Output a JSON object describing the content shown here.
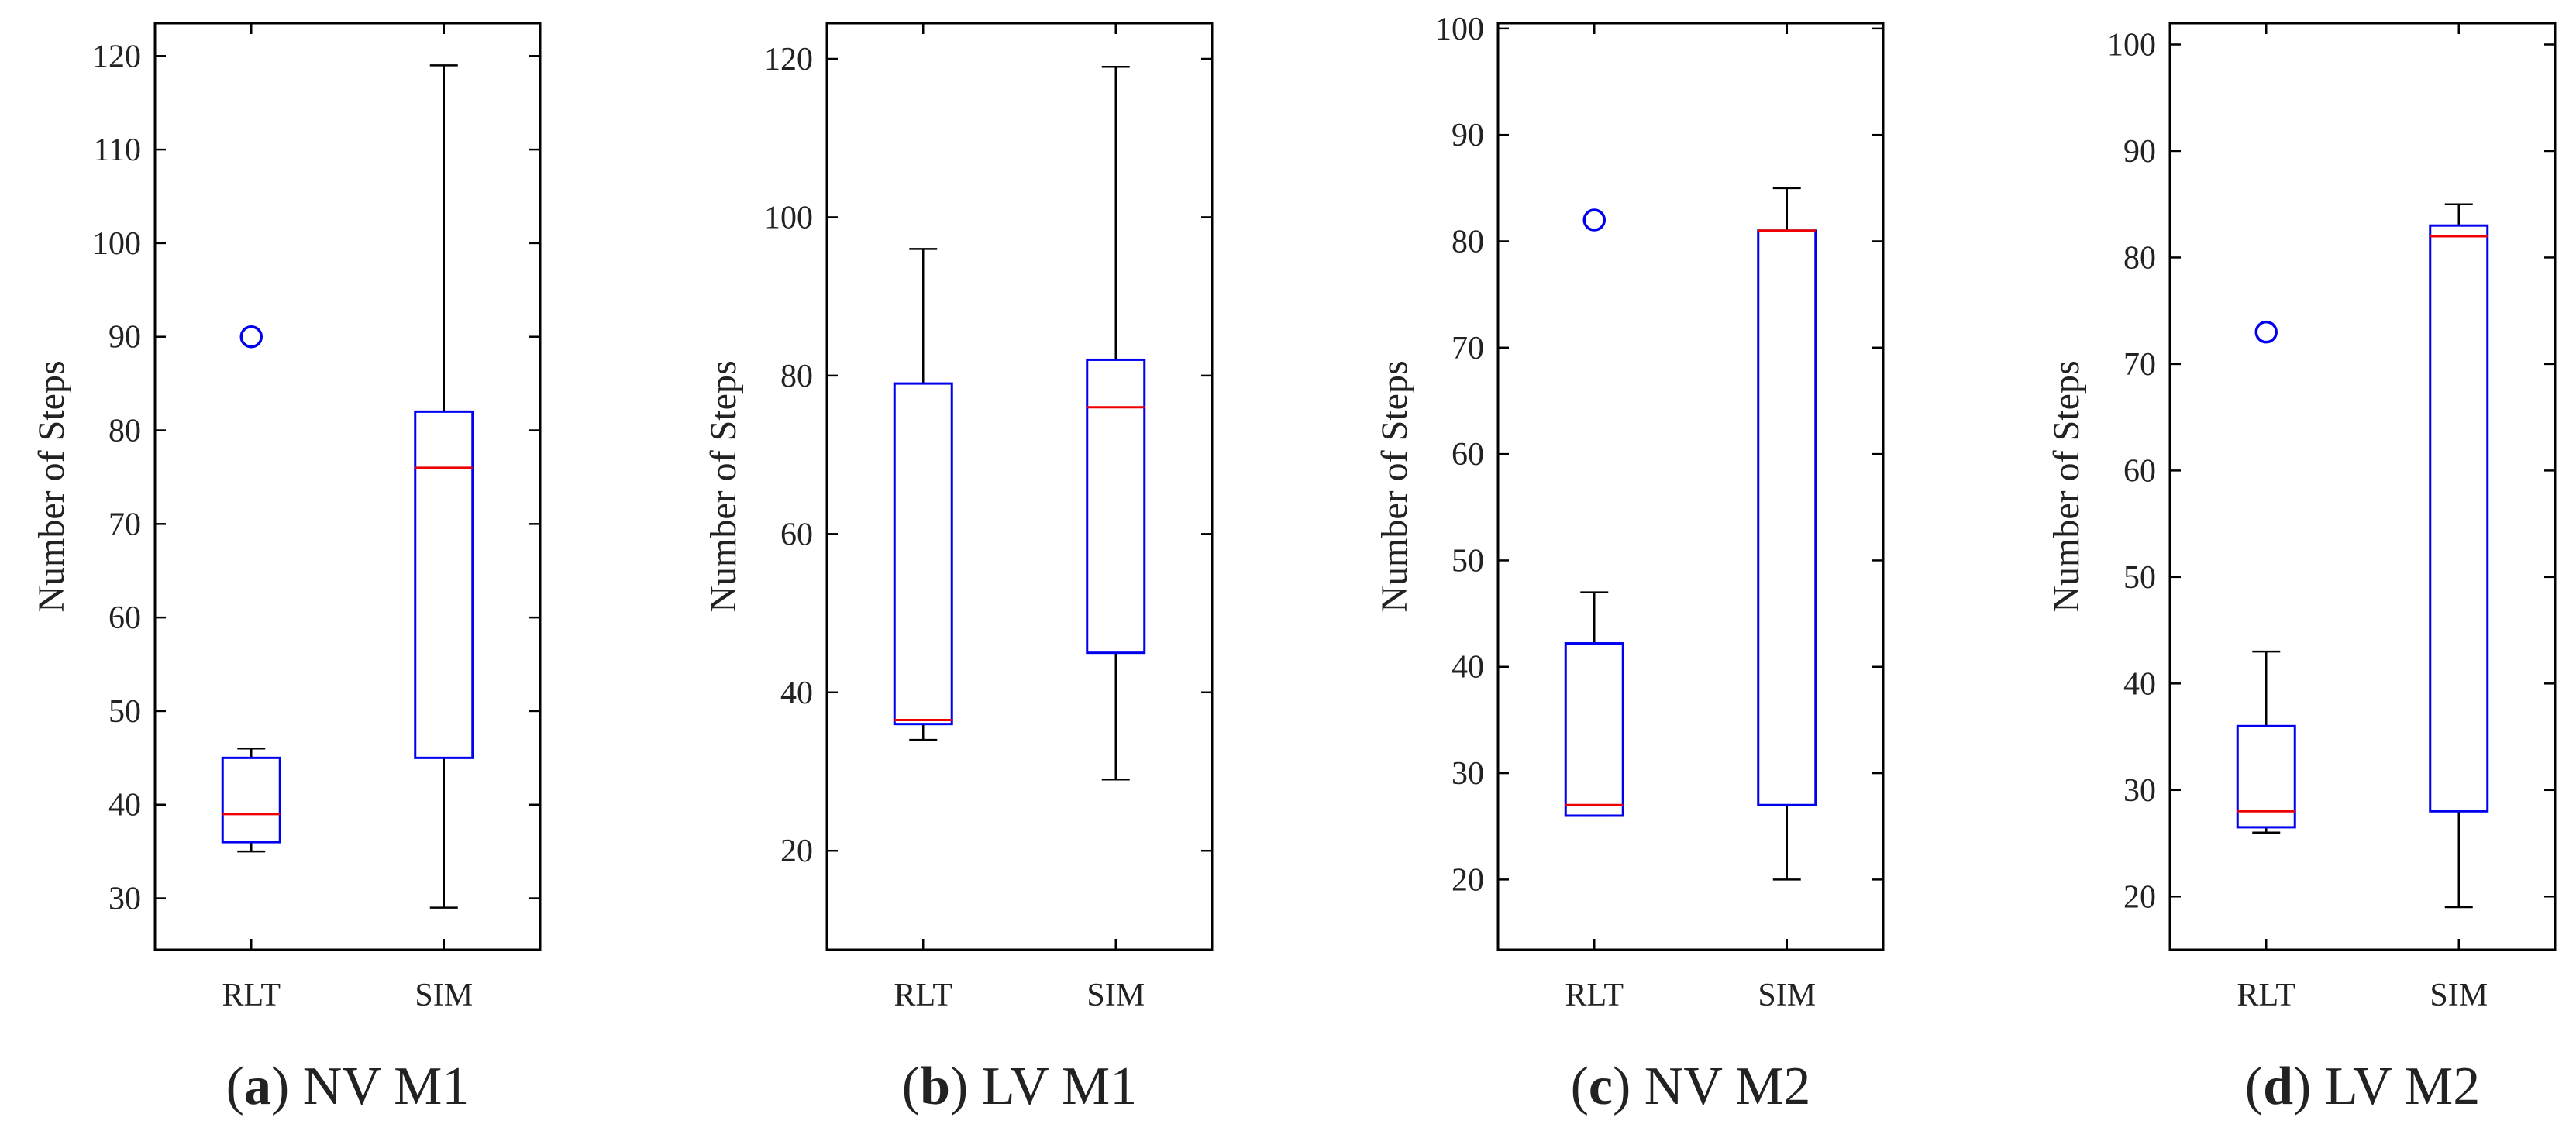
{
  "colors": {
    "box": "#0000ee",
    "median": "#ee0000",
    "whisker": "#000000",
    "outlier": "#0000ee",
    "axis": "#000000"
  },
  "chart_data": [
    {
      "type": "box",
      "caption_letter": "a",
      "caption_text": "NV M1",
      "ylabel": "Number of Steps",
      "categories": [
        "RLT",
        "SIM"
      ],
      "ylim": [
        24.5,
        123.5
      ],
      "yticks": [
        30,
        40,
        50,
        60,
        70,
        80,
        90,
        100,
        110,
        120
      ],
      "boxes": [
        {
          "category": "RLT",
          "whisker_low": 35,
          "q1": 36,
          "median": 39,
          "q3": 45,
          "whisker_high": 46,
          "outliers": [
            90
          ]
        },
        {
          "category": "SIM",
          "whisker_low": 29,
          "q1": 45,
          "median": 76,
          "q3": 82,
          "whisker_high": 119,
          "outliers": []
        }
      ]
    },
    {
      "type": "box",
      "caption_letter": "b",
      "caption_text": "LV M1",
      "ylabel": "Number of Steps",
      "categories": [
        "RLT",
        "SIM"
      ],
      "ylim": [
        7.5,
        124.5
      ],
      "yticks": [
        20,
        40,
        60,
        80,
        100,
        120
      ],
      "boxes": [
        {
          "category": "RLT",
          "whisker_low": 34,
          "q1": 36,
          "median": 36.5,
          "q3": 79,
          "whisker_high": 96,
          "outliers": []
        },
        {
          "category": "SIM",
          "whisker_low": 29,
          "q1": 45,
          "median": 76,
          "q3": 82,
          "whisker_high": 119,
          "outliers": []
        }
      ]
    },
    {
      "type": "box",
      "caption_letter": "c",
      "caption_text": "NV M2",
      "ylabel": "Number of Steps",
      "categories": [
        "RLT",
        "SIM"
      ],
      "ylim": [
        13.4,
        100.5
      ],
      "yticks": [
        20,
        30,
        40,
        50,
        60,
        70,
        80,
        90,
        100
      ],
      "boxes": [
        {
          "category": "RLT",
          "whisker_low": 26,
          "q1": 26,
          "median": 27,
          "q3": 42.2,
          "whisker_high": 47,
          "outliers": [
            82
          ]
        },
        {
          "category": "SIM",
          "whisker_low": 20,
          "q1": 27,
          "median": 81,
          "q3": 81,
          "whisker_high": 85,
          "outliers": []
        }
      ]
    },
    {
      "type": "box",
      "caption_letter": "d",
      "caption_text": "LV M2",
      "ylabel": "Number of Steps",
      "categories": [
        "RLT",
        "SIM"
      ],
      "ylim": [
        15,
        102
      ],
      "yticks": [
        20,
        30,
        40,
        50,
        60,
        70,
        80,
        90,
        100
      ],
      "boxes": [
        {
          "category": "RLT",
          "whisker_low": 26,
          "q1": 26.5,
          "median": 28,
          "q3": 36,
          "whisker_high": 43,
          "outliers": [
            73
          ]
        },
        {
          "category": "SIM",
          "whisker_low": 19,
          "q1": 28,
          "median": 82,
          "q3": 83,
          "whisker_high": 85,
          "outliers": []
        }
      ]
    }
  ]
}
